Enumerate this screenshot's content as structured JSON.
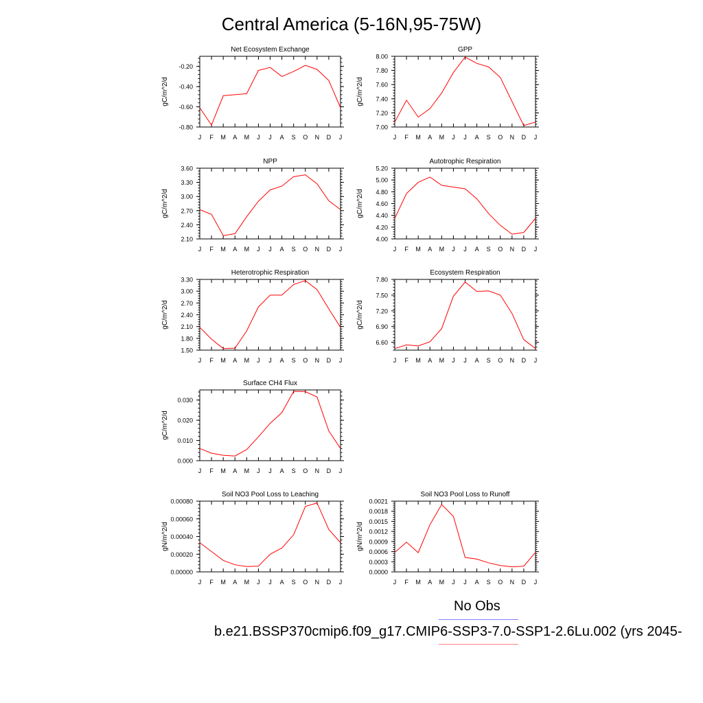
{
  "figure": {
    "title": "Central America (5-16N,95-75W)",
    "legend": {
      "obs_label": "No Obs",
      "run_label": "b.e21.BSSP370cmip6.f09_g17.CMIP6-SSP3-7.0-SSP1-2.6Lu.002 (yrs 2045-",
      "obs_color": "#7f7fff",
      "run_color": "#ff7f7f"
    },
    "line_color": "#ff0000"
  },
  "chart_data": [
    {
      "type": "line",
      "title": "Net Ecosystem Exchange",
      "ylabel": "gC/m^2/d",
      "categories": [
        "J",
        "F",
        "M",
        "A",
        "M",
        "J",
        "J",
        "A",
        "S",
        "O",
        "N",
        "D",
        "J"
      ],
      "ylim": [
        -0.8,
        -0.1
      ],
      "yticks": [
        -0.8,
        -0.6,
        -0.4,
        -0.2
      ],
      "yticklabels": [
        "-0.80",
        "-0.60",
        "-0.40",
        "-0.20"
      ],
      "values": [
        -0.61,
        -0.78,
        -0.49,
        -0.48,
        -0.47,
        -0.24,
        -0.21,
        -0.3,
        -0.25,
        -0.19,
        -0.23,
        -0.34,
        -0.61
      ]
    },
    {
      "type": "line",
      "title": "GPP",
      "ylabel": "gC/m^2/d",
      "categories": [
        "J",
        "F",
        "M",
        "A",
        "M",
        "J",
        "J",
        "A",
        "S",
        "O",
        "N",
        "D",
        "J"
      ],
      "ylim": [
        7.0,
        8.0
      ],
      "yticks": [
        7.0,
        7.2,
        7.4,
        7.6,
        7.8,
        8.0
      ],
      "yticklabels": [
        "7.00",
        "7.20",
        "7.40",
        "7.60",
        "7.80",
        "8.00"
      ],
      "values": [
        7.07,
        7.38,
        7.14,
        7.26,
        7.48,
        7.77,
        7.99,
        7.9,
        7.85,
        7.7,
        7.36,
        7.02,
        7.07
      ]
    },
    {
      "type": "line",
      "title": "NPP",
      "ylabel": "gC/m^2/d",
      "categories": [
        "J",
        "F",
        "M",
        "A",
        "M",
        "J",
        "J",
        "A",
        "S",
        "O",
        "N",
        "D",
        "J"
      ],
      "ylim": [
        2.1,
        3.6
      ],
      "yticks": [
        2.1,
        2.4,
        2.7,
        3.0,
        3.3,
        3.6
      ],
      "yticklabels": [
        "2.10",
        "2.40",
        "2.70",
        "3.00",
        "3.30",
        "3.60"
      ],
      "values": [
        2.72,
        2.62,
        2.17,
        2.21,
        2.57,
        2.9,
        3.14,
        3.22,
        3.42,
        3.46,
        3.27,
        2.91,
        2.72
      ]
    },
    {
      "type": "line",
      "title": "Autotrophic Respiration",
      "ylabel": "gC/m^2/d",
      "categories": [
        "J",
        "F",
        "M",
        "A",
        "M",
        "J",
        "J",
        "A",
        "S",
        "O",
        "N",
        "D",
        "J"
      ],
      "ylim": [
        4.0,
        5.2
      ],
      "yticks": [
        4.0,
        4.2,
        4.4,
        4.6,
        4.8,
        5.0,
        5.2
      ],
      "yticklabels": [
        "4.00",
        "4.20",
        "4.40",
        "4.60",
        "4.80",
        "5.00",
        "5.20"
      ],
      "values": [
        4.35,
        4.77,
        4.96,
        5.05,
        4.91,
        4.88,
        4.85,
        4.68,
        4.43,
        4.23,
        4.08,
        4.11,
        4.35
      ]
    },
    {
      "type": "line",
      "title": "Heterotrophic Respiration",
      "ylabel": "gC/m^2/d",
      "categories": [
        "J",
        "F",
        "M",
        "A",
        "M",
        "J",
        "J",
        "A",
        "S",
        "O",
        "N",
        "D",
        "J"
      ],
      "ylim": [
        1.5,
        3.3
      ],
      "yticks": [
        1.5,
        1.8,
        2.1,
        2.4,
        2.7,
        3.0,
        3.3
      ],
      "yticklabels": [
        "1.50",
        "1.80",
        "2.10",
        "2.40",
        "2.70",
        "3.00",
        "3.30"
      ],
      "values": [
        2.08,
        1.78,
        1.54,
        1.55,
        1.99,
        2.6,
        2.9,
        2.9,
        3.17,
        3.27,
        3.04,
        2.55,
        2.08
      ]
    },
    {
      "type": "line",
      "title": "Ecosystem Respiration",
      "ylabel": "gC/m^2/d",
      "categories": [
        "J",
        "F",
        "M",
        "A",
        "M",
        "J",
        "J",
        "A",
        "S",
        "O",
        "N",
        "D",
        "J"
      ],
      "ylim": [
        6.45,
        7.8
      ],
      "yticks": [
        6.6,
        6.9,
        7.2,
        7.5,
        7.8
      ],
      "yticklabels": [
        "6.60",
        "6.90",
        "7.20",
        "7.50",
        "7.80"
      ],
      "values": [
        6.48,
        6.55,
        6.53,
        6.61,
        6.86,
        7.48,
        7.75,
        7.57,
        7.58,
        7.5,
        7.15,
        6.65,
        6.48
      ]
    },
    {
      "type": "line",
      "title": "Surface CH4 Flux",
      "ylabel": "gC/m^2/d",
      "categories": [
        "J",
        "F",
        "M",
        "A",
        "M",
        "J",
        "J",
        "A",
        "S",
        "O",
        "N",
        "D",
        "J"
      ],
      "ylim": [
        0.0,
        0.035
      ],
      "yticks": [
        0.0,
        0.01,
        0.02,
        0.03
      ],
      "yticklabels": [
        "0.000",
        "0.010",
        "0.020",
        "0.030"
      ],
      "values": [
        0.006,
        0.0037,
        0.0027,
        0.0023,
        0.0055,
        0.0118,
        0.0185,
        0.0238,
        0.0343,
        0.0342,
        0.0315,
        0.0147,
        0.006
      ]
    },
    {
      "type": "line",
      "title": "Soil NO3 Pool Loss to Leaching",
      "ylabel": "gN/m^2/d",
      "categories": [
        "J",
        "F",
        "M",
        "A",
        "M",
        "J",
        "J",
        "A",
        "S",
        "O",
        "N",
        "D",
        "J"
      ],
      "ylim": [
        0.0,
        0.0008
      ],
      "yticks": [
        0.0,
        0.0002,
        0.0004,
        0.0006,
        0.0008
      ],
      "yticklabels": [
        "0.00000",
        "0.00020",
        "0.00040",
        "0.00060",
        "0.00080"
      ],
      "values": [
        0.00033,
        0.00023,
        0.00013,
        8e-05,
        6e-05,
        6.5e-05,
        0.0002,
        0.00027,
        0.00042,
        0.00074,
        0.00078,
        0.00048,
        0.00033
      ]
    },
    {
      "type": "line",
      "title": "Soil NO3 Pool Loss to Runoff",
      "ylabel": "gN/m^2/d",
      "categories": [
        "J",
        "F",
        "M",
        "A",
        "M",
        "J",
        "J",
        "A",
        "S",
        "O",
        "N",
        "D",
        "J"
      ],
      "ylim": [
        0.0,
        0.0021
      ],
      "yticks": [
        0.0,
        0.0003,
        0.0006,
        0.0009,
        0.0012,
        0.0015,
        0.0018,
        0.0021
      ],
      "yticklabels": [
        "0.0000",
        "0.0003",
        "0.0006",
        "0.0009",
        "0.0012",
        "0.0015",
        "0.0018",
        "0.0021"
      ],
      "values": [
        0.00058,
        0.00088,
        0.00057,
        0.0014,
        0.002,
        0.00165,
        0.00043,
        0.00038,
        0.00027,
        0.00019,
        0.00015,
        0.00017,
        0.00058
      ]
    }
  ]
}
